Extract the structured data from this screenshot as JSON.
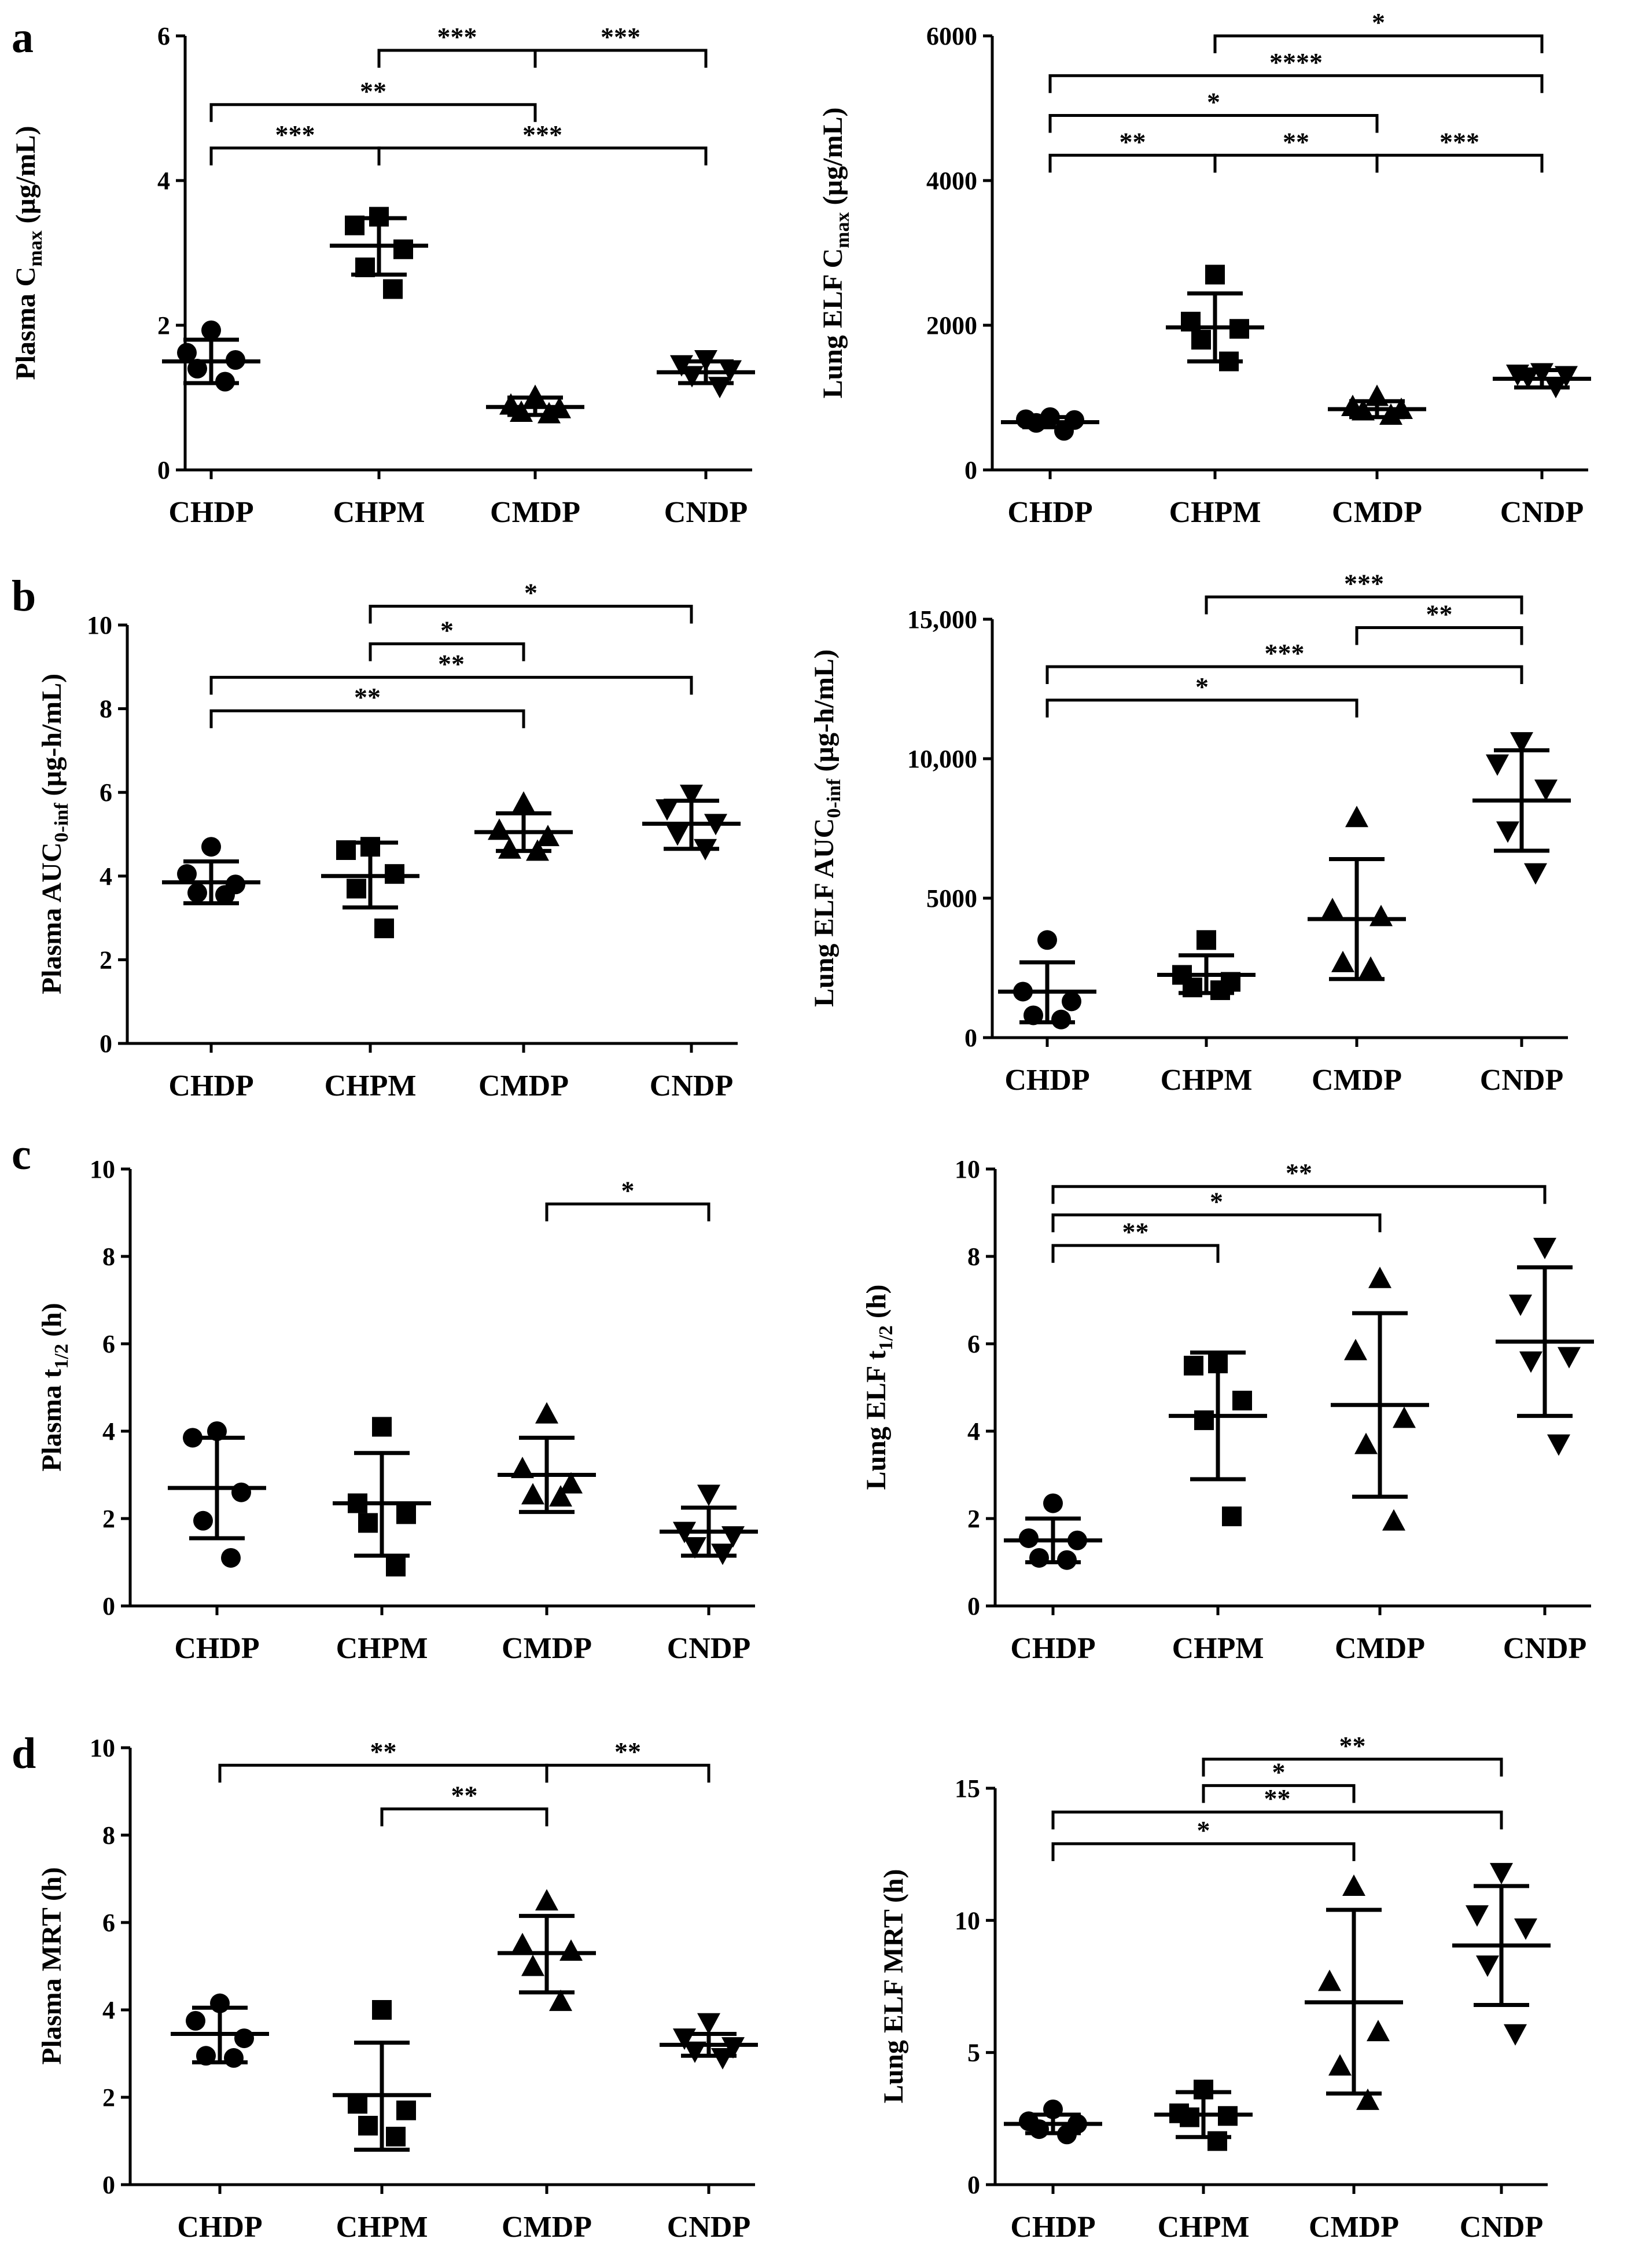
{
  "figure": {
    "panel_letters": [
      "a",
      "b",
      "c",
      "d"
    ]
  },
  "chart_data": [
    {
      "id": "a-plasma",
      "panel": "a",
      "type": "scatter",
      "ylabel_parts": [
        {
          "t": "Plasma C"
        },
        {
          "t": "max",
          "sub": true
        },
        {
          "t": " (µg/mL)"
        }
      ],
      "ylim": [
        0,
        6
      ],
      "yticks": [
        0,
        2,
        4,
        6
      ],
      "ytick_labels": [
        "0",
        "2",
        "4",
        "6"
      ],
      "categories": [
        "CHDP",
        "CHPM",
        "CMDP",
        "CNDP"
      ],
      "groups": [
        {
          "name": "CHDP",
          "marker": "circle",
          "points": [
            1.93,
            1.62,
            1.52,
            1.4,
            1.22
          ],
          "mean": 1.5,
          "sd_low": 1.2,
          "sd_high": 1.8
        },
        {
          "name": "CHPM",
          "marker": "square",
          "points": [
            3.5,
            3.38,
            3.05,
            2.8,
            2.5
          ],
          "mean": 3.1,
          "sd_low": 2.7,
          "sd_high": 3.48
        },
        {
          "name": "CMDP",
          "marker": "triangle-up",
          "points": [
            1.02,
            0.9,
            0.85,
            0.8,
            0.78
          ],
          "mean": 0.87,
          "sd_low": 0.76,
          "sd_high": 1.0
        },
        {
          "name": "CNDP",
          "marker": "triangle-down",
          "points": [
            1.52,
            1.45,
            1.38,
            1.3,
            1.15
          ],
          "mean": 1.35,
          "sd_low": 1.2,
          "sd_high": 1.5
        }
      ],
      "brackets": [
        {
          "from": 1,
          "to": 2,
          "y": 5.8,
          "label": "***"
        },
        {
          "from": 2,
          "to": 3,
          "y": 5.8,
          "label": "***"
        },
        {
          "from": 0,
          "to": 2,
          "y": 5.05,
          "label": "**"
        },
        {
          "from": 0,
          "to": 1,
          "y": 4.45,
          "label": "***"
        },
        {
          "from": 1,
          "to": 3,
          "y": 4.45,
          "label": "***"
        }
      ]
    },
    {
      "id": "a-lung",
      "panel": "a",
      "type": "scatter",
      "ylabel_parts": [
        {
          "t": "Lung ELF C"
        },
        {
          "t": "max",
          "sub": true
        },
        {
          "t": " (µg/mL)"
        }
      ],
      "ylim": [
        0,
        6000
      ],
      "yticks": [
        0,
        2000,
        4000,
        6000
      ],
      "ytick_labels": [
        "0",
        "2000",
        "4000",
        "6000"
      ],
      "categories": [
        "CHDP",
        "CHPM",
        "CMDP",
        "CNDP"
      ],
      "groups": [
        {
          "name": "CHDP",
          "marker": "circle",
          "points": [
            730,
            700,
            690,
            650,
            540
          ],
          "mean": 660,
          "sd_low": 590,
          "sd_high": 730
        },
        {
          "name": "CHPM",
          "marker": "square",
          "points": [
            2700,
            2050,
            1950,
            1800,
            1500
          ],
          "mean": 1970,
          "sd_low": 1500,
          "sd_high": 2440
        },
        {
          "name": "CMDP",
          "marker": "triangle-up",
          "points": [
            1020,
            880,
            840,
            820,
            760
          ],
          "mean": 840,
          "sd_low": 730,
          "sd_high": 950
        },
        {
          "name": "CNDP",
          "marker": "triangle-down",
          "points": [
            1340,
            1320,
            1300,
            1280,
            1150
          ],
          "mean": 1260,
          "sd_low": 1140,
          "sd_high": 1380
        }
      ],
      "brackets": [
        {
          "from": 1,
          "to": 3,
          "y": 6000,
          "label": "*"
        },
        {
          "from": 0,
          "to": 3,
          "y": 5450,
          "label": "****"
        },
        {
          "from": 0,
          "to": 2,
          "y": 4900,
          "label": "*"
        },
        {
          "from": 0,
          "to": 1,
          "y": 4350,
          "label": "**"
        },
        {
          "from": 1,
          "to": 2,
          "y": 4350,
          "label": "**"
        },
        {
          "from": 2,
          "to": 3,
          "y": 4350,
          "label": "***"
        }
      ]
    },
    {
      "id": "b-plasma",
      "panel": "b",
      "type": "scatter",
      "ylabel_parts": [
        {
          "t": "Plasma AUC"
        },
        {
          "t": "0-inf",
          "sub": true
        },
        {
          "t": " (µg-h/mL)"
        }
      ],
      "ylim": [
        0,
        10
      ],
      "yticks": [
        0,
        2,
        4,
        6,
        8,
        10
      ],
      "ytick_labels": [
        "0",
        "2",
        "4",
        "6",
        "8",
        "10"
      ],
      "categories": [
        "CHDP",
        "CHPM",
        "CMDP",
        "CNDP"
      ],
      "groups": [
        {
          "name": "CHDP",
          "marker": "circle",
          "points": [
            4.7,
            4.05,
            3.8,
            3.6,
            3.55
          ],
          "mean": 3.85,
          "sd_low": 3.35,
          "sd_high": 4.35
        },
        {
          "name": "CHPM",
          "marker": "square",
          "points": [
            4.7,
            4.62,
            4.05,
            3.7,
            2.75
          ],
          "mean": 4.0,
          "sd_low": 3.25,
          "sd_high": 4.8
        },
        {
          "name": "CMDP",
          "marker": "triangle-up",
          "points": [
            5.75,
            5.1,
            4.95,
            4.65,
            4.6
          ],
          "mean": 5.05,
          "sd_low": 4.6,
          "sd_high": 5.5
        },
        {
          "name": "CNDP",
          "marker": "triangle-down",
          "points": [
            5.95,
            5.6,
            5.25,
            5.0,
            4.65
          ],
          "mean": 5.25,
          "sd_low": 4.65,
          "sd_high": 5.8
        }
      ],
      "brackets": [
        {
          "from": 1,
          "to": 3,
          "y": 10.45,
          "label": "*"
        },
        {
          "from": 1,
          "to": 2,
          "y": 9.55,
          "label": "*"
        },
        {
          "from": 0,
          "to": 3,
          "y": 8.75,
          "label": "**"
        },
        {
          "from": 0,
          "to": 2,
          "y": 7.95,
          "label": "**"
        }
      ]
    },
    {
      "id": "b-lung",
      "panel": "b",
      "type": "scatter",
      "ylabel_parts": [
        {
          "t": "Lung ELF AUC"
        },
        {
          "t": "0-inf",
          "sub": true
        },
        {
          "t": " (µg-h/mL)"
        }
      ],
      "ylim": [
        0,
        15000
      ],
      "yticks": [
        0,
        5000,
        10000,
        15000
      ],
      "ytick_labels": [
        "0",
        "5000",
        "10,000",
        "15,000"
      ],
      "categories": [
        "CHDP",
        "CHPM",
        "CMDP",
        "CNDP"
      ],
      "groups": [
        {
          "name": "CHDP",
          "marker": "circle",
          "points": [
            3500,
            1650,
            1300,
            800,
            650
          ],
          "mean": 1650,
          "sd_low": 550,
          "sd_high": 2700
        },
        {
          "name": "CHPM",
          "marker": "square",
          "points": [
            3500,
            2250,
            2000,
            1800,
            1700
          ],
          "mean": 2250,
          "sd_low": 1600,
          "sd_high": 2950
        },
        {
          "name": "CMDP",
          "marker": "triangle-up",
          "points": [
            7900,
            4600,
            4350,
            2700,
            2500
          ],
          "mean": 4250,
          "sd_low": 2100,
          "sd_high": 6400
        },
        {
          "name": "CNDP",
          "marker": "triangle-down",
          "points": [
            10600,
            9800,
            8900,
            7400,
            5900
          ],
          "mean": 8500,
          "sd_low": 6700,
          "sd_high": 10300
        }
      ],
      "brackets": [
        {
          "from": 1,
          "to": 3,
          "y": 15800,
          "label": "***"
        },
        {
          "from": 2,
          "to": 3,
          "y": 14700,
          "label": "**"
        },
        {
          "from": 0,
          "to": 3,
          "y": 13300,
          "label": "***"
        },
        {
          "from": 0,
          "to": 2,
          "y": 12100,
          "label": "*"
        }
      ]
    },
    {
      "id": "c-plasma",
      "panel": "c",
      "type": "scatter",
      "ylabel_parts": [
        {
          "t": "Plasma t"
        },
        {
          "t": "1/2",
          "sub": true
        },
        {
          "t": " (h)"
        }
      ],
      "ylim": [
        0,
        10
      ],
      "yticks": [
        0,
        2,
        4,
        6,
        8,
        10
      ],
      "ytick_labels": [
        "0",
        "2",
        "4",
        "6",
        "8",
        "10"
      ],
      "categories": [
        "CHDP",
        "CHPM",
        "CMDP",
        "CNDP"
      ],
      "groups": [
        {
          "name": "CHDP",
          "marker": "circle",
          "points": [
            4.0,
            3.85,
            2.6,
            1.95,
            1.1
          ],
          "mean": 2.7,
          "sd_low": 1.55,
          "sd_high": 3.85
        },
        {
          "name": "CHPM",
          "marker": "square",
          "points": [
            4.1,
            2.35,
            2.1,
            1.9,
            0.9
          ],
          "mean": 2.35,
          "sd_low": 1.15,
          "sd_high": 3.5
        },
        {
          "name": "CMDP",
          "marker": "triangle-up",
          "points": [
            4.4,
            3.15,
            2.8,
            2.55,
            2.5
          ],
          "mean": 3.0,
          "sd_low": 2.15,
          "sd_high": 3.85
        },
        {
          "name": "CNDP",
          "marker": "triangle-down",
          "points": [
            2.55,
            1.7,
            1.6,
            1.35,
            1.2
          ],
          "mean": 1.7,
          "sd_low": 1.15,
          "sd_high": 2.25
        }
      ],
      "brackets": [
        {
          "from": 2,
          "to": 3,
          "y": 9.2,
          "label": "*"
        }
      ]
    },
    {
      "id": "c-lung",
      "panel": "c",
      "type": "scatter",
      "ylabel_parts": [
        {
          "t": "Lung ELF t"
        },
        {
          "t": "1/2",
          "sub": true
        },
        {
          "t": " (h)"
        }
      ],
      "ylim": [
        0,
        10
      ],
      "yticks": [
        0,
        2,
        4,
        6,
        8,
        10
      ],
      "ytick_labels": [
        "0",
        "2",
        "4",
        "6",
        "8",
        "10"
      ],
      "categories": [
        "CHDP",
        "CHPM",
        "CMDP",
        "CNDP"
      ],
      "groups": [
        {
          "name": "CHDP",
          "marker": "circle",
          "points": [
            2.35,
            1.55,
            1.5,
            1.1,
            1.05
          ],
          "mean": 1.5,
          "sd_low": 1.0,
          "sd_high": 2.0
        },
        {
          "name": "CHPM",
          "marker": "square",
          "points": [
            5.55,
            5.5,
            4.7,
            4.25,
            2.05
          ],
          "mean": 4.35,
          "sd_low": 2.9,
          "sd_high": 5.8
        },
        {
          "name": "CMDP",
          "marker": "triangle-up",
          "points": [
            7.5,
            5.85,
            4.3,
            3.7,
            1.95
          ],
          "mean": 4.6,
          "sd_low": 2.5,
          "sd_high": 6.7
        },
        {
          "name": "CNDP",
          "marker": "triangle-down",
          "points": [
            8.2,
            6.9,
            5.7,
            5.6,
            3.7
          ],
          "mean": 6.05,
          "sd_low": 4.35,
          "sd_high": 7.75
        }
      ],
      "brackets": [
        {
          "from": 0,
          "to": 3,
          "y": 9.6,
          "label": "**"
        },
        {
          "from": 0,
          "to": 2,
          "y": 8.95,
          "label": "*"
        },
        {
          "from": 0,
          "to": 1,
          "y": 8.25,
          "label": "**"
        }
      ]
    },
    {
      "id": "d-plasma",
      "panel": "d",
      "type": "scatter",
      "ylabel_parts": [
        {
          "t": "Plasma MRT (h)"
        }
      ],
      "ylim": [
        0,
        10
      ],
      "yticks": [
        0,
        2,
        4,
        6,
        8,
        10
      ],
      "ytick_labels": [
        "0",
        "2",
        "4",
        "6",
        "8",
        "10"
      ],
      "categories": [
        "CHDP",
        "CHPM",
        "CMDP",
        "CNDP"
      ],
      "groups": [
        {
          "name": "CHDP",
          "marker": "circle",
          "points": [
            4.15,
            3.75,
            3.35,
            2.95,
            2.9
          ],
          "mean": 3.45,
          "sd_low": 2.8,
          "sd_high": 4.05
        },
        {
          "name": "CHPM",
          "marker": "square",
          "points": [
            4.0,
            1.85,
            1.7,
            1.35,
            1.1
          ],
          "mean": 2.05,
          "sd_low": 0.8,
          "sd_high": 3.25
        },
        {
          "name": "CMDP",
          "marker": "triangle-up",
          "points": [
            6.5,
            5.5,
            5.35,
            5.0,
            4.2
          ],
          "mean": 5.3,
          "sd_low": 4.4,
          "sd_high": 6.15
        },
        {
          "name": "CNDP",
          "marker": "triangle-down",
          "points": [
            3.7,
            3.35,
            3.15,
            3.05,
            2.9
          ],
          "mean": 3.2,
          "sd_low": 2.95,
          "sd_high": 3.45
        }
      ],
      "brackets": [
        {
          "from": 0,
          "to": 2,
          "y": 9.6,
          "label": "**"
        },
        {
          "from": 2,
          "to": 3,
          "y": 9.6,
          "label": "**"
        },
        {
          "from": 1,
          "to": 2,
          "y": 8.6,
          "label": "**"
        }
      ]
    },
    {
      "id": "d-lung",
      "panel": "d",
      "type": "scatter",
      "ylabel_parts": [
        {
          "t": "Lung ELF MRT (h)"
        }
      ],
      "ylim": [
        0,
        15
      ],
      "yticks": [
        0,
        5,
        10,
        15
      ],
      "ytick_labels": [
        "0",
        "5",
        "10",
        "15"
      ],
      "categories": [
        "CHDP",
        "CHPM",
        "CMDP",
        "CNDP"
      ],
      "groups": [
        {
          "name": "CHDP",
          "marker": "circle",
          "points": [
            2.85,
            2.4,
            2.3,
            2.1,
            1.9
          ],
          "mean": 2.3,
          "sd_low": 1.95,
          "sd_high": 2.65
        },
        {
          "name": "CHPM",
          "marker": "square",
          "points": [
            3.6,
            2.7,
            2.6,
            2.55,
            1.65
          ],
          "mean": 2.65,
          "sd_low": 1.8,
          "sd_high": 3.5
        },
        {
          "name": "CMDP",
          "marker": "triangle-up",
          "points": [
            11.3,
            7.7,
            5.8,
            4.5,
            3.2
          ],
          "mean": 6.9,
          "sd_low": 3.45,
          "sd_high": 10.4
        },
        {
          "name": "CNDP",
          "marker": "triangle-down",
          "points": [
            11.8,
            10.2,
            9.7,
            8.3,
            5.7
          ],
          "mean": 9.05,
          "sd_low": 6.8,
          "sd_high": 11.3
        }
      ],
      "brackets": [
        {
          "from": 1,
          "to": 3,
          "y": 16.1,
          "label": "**"
        },
        {
          "from": 1,
          "to": 2,
          "y": 15.1,
          "label": "*"
        },
        {
          "from": 0,
          "to": 3,
          "y": 14.1,
          "label": "**"
        },
        {
          "from": 0,
          "to": 2,
          "y": 12.9,
          "label": "*"
        }
      ]
    }
  ]
}
